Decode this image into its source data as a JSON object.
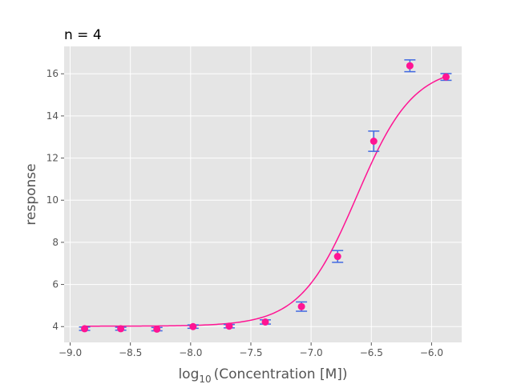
{
  "chart_data": {
    "type": "scatter",
    "title": "n = 4",
    "xlabel": {
      "prefix": "log",
      "subscript": "10",
      "suffix": "(Concentration [M])"
    },
    "ylabel": "response",
    "xlim": [
      -9.05,
      -5.75
    ],
    "ylim": [
      3.25,
      17.3
    ],
    "x_ticks": [
      -9.0,
      -8.5,
      -8.0,
      -7.5,
      -7.0,
      -6.5,
      -6.0
    ],
    "x_tick_labels": [
      "−9.0",
      "−8.5",
      "−8.0",
      "−7.5",
      "−7.0",
      "−6.5",
      "−6.0"
    ],
    "y_ticks": [
      4,
      6,
      8,
      10,
      12,
      14,
      16
    ],
    "y_tick_labels": [
      "4",
      "6",
      "8",
      "10",
      "12",
      "14",
      "16"
    ],
    "grid": true,
    "legend": "none",
    "colors": {
      "background": "#e5e5e5",
      "grid": "#ffffff",
      "points": "#ff1493",
      "error_bars": "#4169e1",
      "fit": "#ff1493"
    },
    "points": [
      {
        "x": -8.88,
        "y": 3.9,
        "err": 0.08
      },
      {
        "x": -8.58,
        "y": 3.9,
        "err": 0.07
      },
      {
        "x": -8.28,
        "y": 3.88,
        "err": 0.08
      },
      {
        "x": -7.98,
        "y": 4.0,
        "err": 0.08
      },
      {
        "x": -7.68,
        "y": 4.02,
        "err": 0.08
      },
      {
        "x": -7.38,
        "y": 4.22,
        "err": 0.1
      },
      {
        "x": -7.08,
        "y": 4.95,
        "err": 0.22
      },
      {
        "x": -6.78,
        "y": 7.33,
        "err": 0.28
      },
      {
        "x": -6.48,
        "y": 12.8,
        "err": 0.48
      },
      {
        "x": -6.18,
        "y": 16.38,
        "err": 0.28
      },
      {
        "x": -5.88,
        "y": 15.85,
        "err": 0.16
      }
    ],
    "fit": {
      "model": "4PL",
      "bottom": 4.02,
      "top": 16.38,
      "log_ec50": -6.62,
      "hill_slope": 1.85,
      "x_range": [
        -8.88,
        -5.88
      ]
    }
  }
}
